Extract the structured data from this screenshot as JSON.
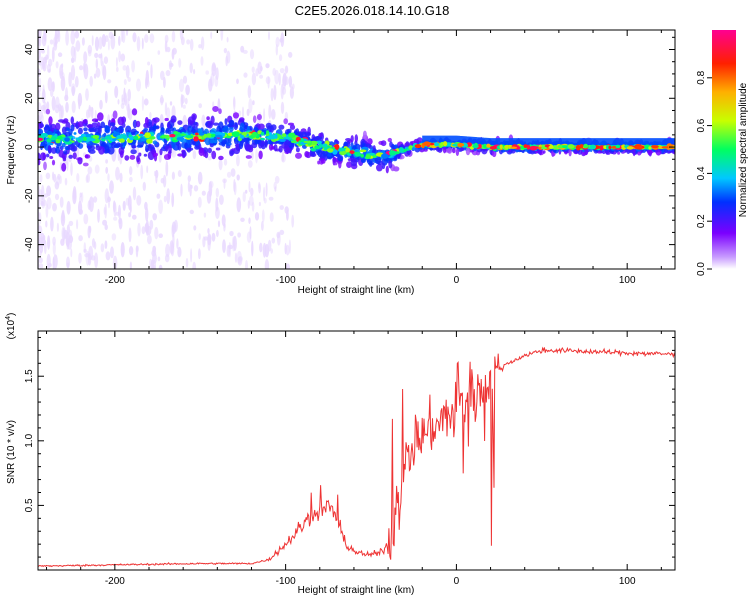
{
  "title": "C2E5.2026.018.14.10.G18",
  "chart_data": [
    {
      "type": "heatmap",
      "title": "C2E5.2026.018.14.10.G18",
      "xlabel": "Height of straight line (km)",
      "ylabel": "Frequency (Hz)",
      "xlim": [
        -245,
        128
      ],
      "ylim": [
        -50,
        48
      ],
      "x_ticks": [
        -200,
        -100,
        0,
        100
      ],
      "x_tick_labels": [
        "-200",
        "-100",
        "0",
        "100"
      ],
      "y_ticks": [
        -40,
        -20,
        0,
        20,
        40
      ],
      "y_tick_labels": [
        "-40",
        "-20",
        "0",
        "20",
        "40"
      ],
      "ridge_frequency": {
        "x": [
          -245,
          -120,
          -100,
          -80,
          -60,
          -45,
          -40,
          -30,
          -20,
          -10,
          0,
          20,
          128
        ],
        "y": [
          3,
          5,
          4,
          0,
          -2,
          -4,
          -3,
          -1,
          1,
          1,
          1,
          0,
          0
        ]
      },
      "colorbar": {
        "label": "Normalized spectral amplitude",
        "range": [
          0,
          1
        ],
        "ticks": [
          0,
          0.2,
          0.4,
          0.6,
          0.8
        ],
        "tick_labels": [
          "0.0",
          "0.2",
          "0.4",
          "0.6",
          "0.8"
        ]
      },
      "colors": {
        "faint": "#e8d8ff",
        "low": "#7b00ff",
        "mid": "#00e0ff",
        "high": "#ff2060"
      }
    },
    {
      "type": "line",
      "xlabel": "Height of straight line (km)",
      "ylabel": "SNR (10 * v/v)",
      "y_scale_label": "(x10",
      "y_scale_exponent": "4",
      "y_scale_close": ")",
      "xlim": [
        -245,
        128
      ],
      "ylim": [
        0,
        1.85
      ],
      "x_ticks": [
        -200,
        -100,
        0,
        100
      ],
      "x_tick_labels": [
        "-200",
        "-100",
        "0",
        "100"
      ],
      "y_ticks": [
        0.5,
        1.0,
        1.5
      ],
      "y_tick_labels": [
        "0.5",
        "1.0",
        "1.5"
      ],
      "series": [
        {
          "name": "SNR",
          "color": "#ee3333",
          "x": [
            -245,
            -200,
            -150,
            -120,
            -110,
            -100,
            -90,
            -80,
            -75,
            -70,
            -65,
            -60,
            -55,
            -50,
            -45,
            -40,
            -35,
            -30,
            -25,
            -20,
            -15,
            -10,
            -5,
            0,
            10,
            20,
            30,
            40,
            50,
            60,
            80,
            100,
            128
          ],
          "y": [
            0.03,
            0.04,
            0.05,
            0.05,
            0.08,
            0.2,
            0.35,
            0.45,
            0.5,
            0.4,
            0.2,
            0.15,
            0.12,
            0.12,
            0.13,
            0.2,
            0.45,
            0.8,
            1.0,
            1.05,
            1.1,
            1.15,
            1.2,
            1.25,
            1.35,
            1.5,
            1.6,
            1.66,
            1.7,
            1.7,
            1.69,
            1.68,
            1.67
          ]
        }
      ]
    }
  ]
}
